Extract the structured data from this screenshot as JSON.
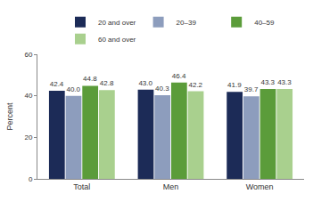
{
  "chart_data": {
    "type": "bar",
    "categories": [
      "Total",
      "Men",
      "Women"
    ],
    "series": [
      {
        "name": "20 and over",
        "color": "#1c2b57",
        "values": [
          42.4,
          43.0,
          41.9
        ],
        "value_labels": [
          "42.4",
          "43.0",
          "41.9"
        ]
      },
      {
        "name": "20–39",
        "color": "#8d9dbd",
        "values": [
          40.0,
          40.3,
          39.7
        ],
        "value_labels": [
          "40.0",
          "40.3",
          "39.7"
        ]
      },
      {
        "name": "40–59",
        "color": "#5b9c3a",
        "values": [
          44.8,
          46.4,
          43.3
        ],
        "value_labels": [
          "44.8",
          "46.4",
          "43.3"
        ]
      },
      {
        "name": "60 and over",
        "color": "#a9d08e",
        "values": [
          42.8,
          42.2,
          43.3
        ],
        "value_labels": [
          "42.8",
          "42.2",
          "43.3"
        ]
      }
    ],
    "y_label": "Percent",
    "ylim": [
      0,
      60
    ],
    "yticks": [
      0,
      20,
      40,
      60
    ],
    "grid": false,
    "legend": "top",
    "data_labels": true
  }
}
